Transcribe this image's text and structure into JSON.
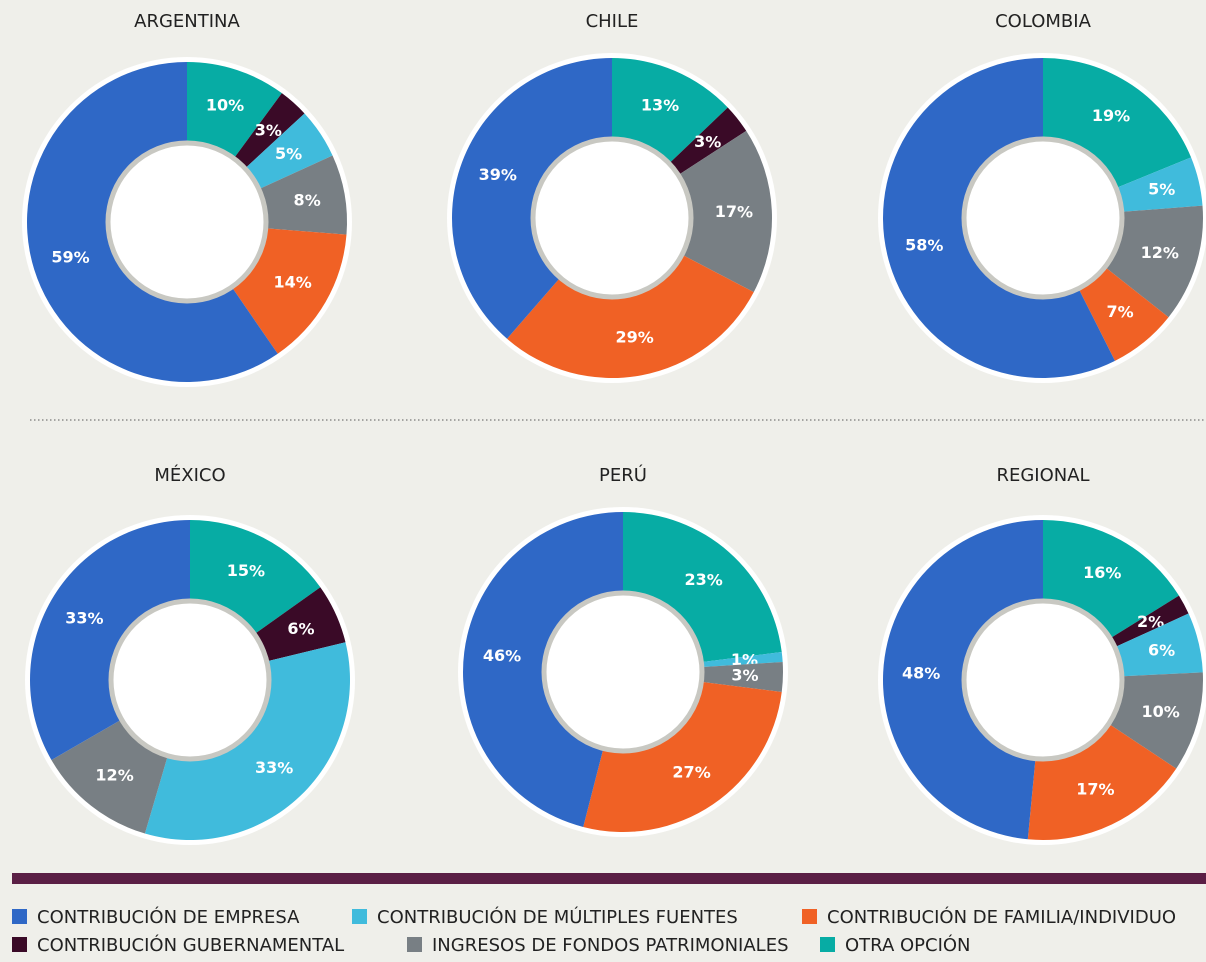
{
  "legend": {
    "categories": [
      "CONTRIBUCIÓN DE EMPRESA",
      "CONTRIBUCIÓN DE MÚLTIPLES FUENTES",
      "CONTRIBUCIÓN DE FAMILIA/INDIVIDUO",
      "CONTRIBUCIÓN GUBERNAMENTAL",
      "INGRESOS DE FONDOS PATRIMONIALES",
      "OTRA OPCIÓN"
    ],
    "colors": [
      "#2f68c6",
      "#40bbdc",
      "#f06125",
      "#3a0a27",
      "#787f84",
      "#07aca4"
    ]
  },
  "chart_data": [
    {
      "type": "pie",
      "title": "ARGENTINA",
      "values": [
        59,
        5,
        14,
        3,
        8,
        10
      ]
    },
    {
      "type": "pie",
      "title": "CHILE",
      "values": [
        39,
        null,
        29,
        3,
        17,
        13
      ]
    },
    {
      "type": "pie",
      "title": "COLOMBIA",
      "values": [
        58,
        5,
        7,
        null,
        12,
        19
      ]
    },
    {
      "type": "pie",
      "title": "MÉXICO",
      "values": [
        33,
        33,
        null,
        6,
        12,
        15
      ]
    },
    {
      "type": "pie",
      "title": "PERÚ",
      "values": [
        46,
        1,
        27,
        null,
        3,
        23
      ]
    },
    {
      "type": "pie",
      "title": "REGIONAL",
      "values": [
        48,
        6,
        17,
        2,
        10,
        16
      ]
    }
  ]
}
